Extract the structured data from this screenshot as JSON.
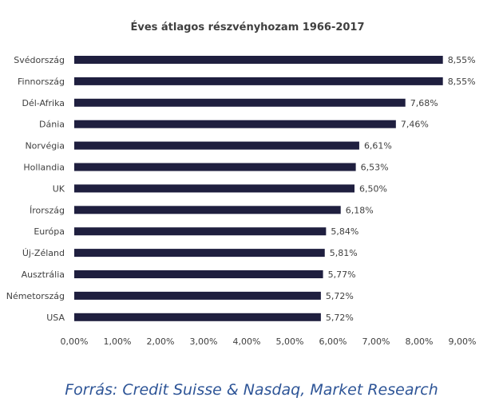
{
  "chart_data": {
    "type": "bar",
    "orientation": "horizontal",
    "title": "Éves átlagos részvényhozam 1966-2017",
    "categories": [
      "Svédország",
      "Finnország",
      "Dél-Afrika",
      "Dánia",
      "Norvégia",
      "Hollandia",
      "UK",
      "Írország",
      "Európa",
      "Új-Zéland",
      "Ausztrália",
      "Németország",
      "USA"
    ],
    "values": [
      8.55,
      8.55,
      7.68,
      7.46,
      6.61,
      6.53,
      6.5,
      6.18,
      5.84,
      5.81,
      5.77,
      5.72,
      5.72
    ],
    "data_labels": [
      "8,55%",
      "8,55%",
      "7,68%",
      "7,46%",
      "6,61%",
      "6,53%",
      "6,50%",
      "6,18%",
      "5,84%",
      "5,81%",
      "5,77%",
      "5,72%",
      "5,72%"
    ],
    "xticks": [
      "0,00%",
      "1,00%",
      "2,00%",
      "3,00%",
      "4,00%",
      "5,00%",
      "6,00%",
      "7,00%",
      "8,00%",
      "9,00%"
    ],
    "xlim": [
      0,
      9
    ],
    "grid": false,
    "bar_color": "#1f1f3f"
  },
  "source_text": "Forrás: Credit Suisse & Nasdaq, Market Research"
}
